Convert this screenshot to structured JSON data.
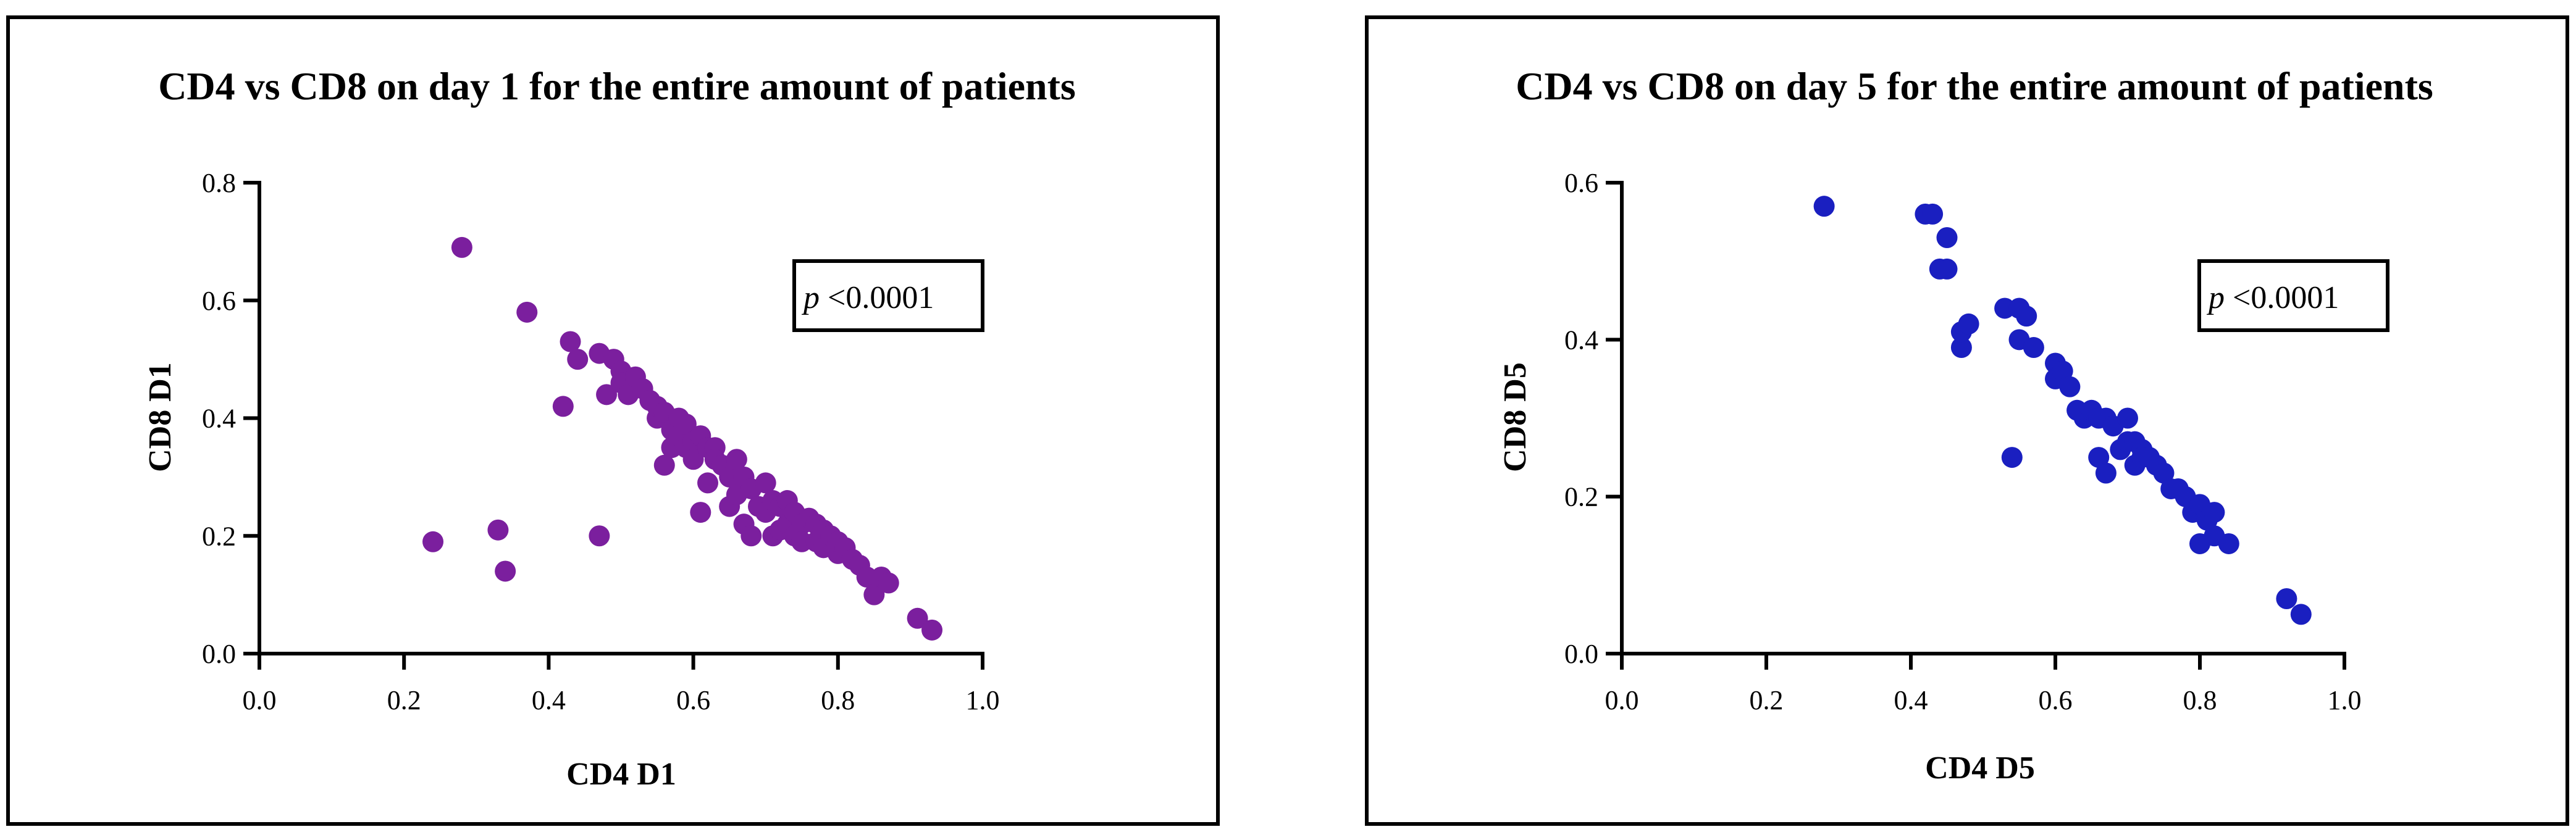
{
  "chart_data": [
    {
      "type": "scatter",
      "title": "CD4 vs CD8 on day 1 for the entire amount of patients",
      "xlabel": "CD4 D1",
      "ylabel": "CD8 D1",
      "xlim": [
        0.0,
        1.0
      ],
      "ylim": [
        0.0,
        0.8
      ],
      "xticks": [
        "0.0",
        "0.2",
        "0.4",
        "0.6",
        "0.8",
        "1.0"
      ],
      "yticks": [
        "0.0",
        "0.2",
        "0.4",
        "0.6",
        "0.8"
      ],
      "color": "#7B1F9E",
      "annotation": {
        "italic": "p",
        "text": " <0.0001"
      },
      "series": [
        {
          "x": [
            0.24,
            0.28,
            0.33,
            0.34,
            0.37,
            0.42,
            0.43,
            0.44,
            0.47,
            0.47,
            0.48,
            0.49,
            0.5,
            0.5,
            0.51,
            0.52,
            0.53,
            0.54,
            0.55,
            0.55,
            0.56,
            0.56,
            0.57,
            0.57,
            0.58,
            0.58,
            0.59,
            0.59,
            0.6,
            0.6,
            0.61,
            0.61,
            0.62,
            0.62,
            0.63,
            0.63,
            0.64,
            0.65,
            0.65,
            0.66,
            0.66,
            0.67,
            0.67,
            0.68,
            0.68,
            0.69,
            0.7,
            0.7,
            0.71,
            0.71,
            0.72,
            0.72,
            0.73,
            0.73,
            0.74,
            0.74,
            0.75,
            0.75,
            0.76,
            0.77,
            0.77,
            0.78,
            0.78,
            0.79,
            0.8,
            0.8,
            0.81,
            0.82,
            0.83,
            0.84,
            0.85,
            0.86,
            0.87,
            0.91,
            0.93
          ],
          "y": [
            0.19,
            0.69,
            0.21,
            0.14,
            0.58,
            0.42,
            0.53,
            0.5,
            0.2,
            0.51,
            0.44,
            0.5,
            0.48,
            0.46,
            0.44,
            0.47,
            0.45,
            0.43,
            0.4,
            0.42,
            0.41,
            0.32,
            0.38,
            0.35,
            0.4,
            0.37,
            0.39,
            0.35,
            0.36,
            0.33,
            0.37,
            0.24,
            0.35,
            0.29,
            0.35,
            0.33,
            0.32,
            0.3,
            0.25,
            0.33,
            0.27,
            0.3,
            0.22,
            0.28,
            0.2,
            0.25,
            0.29,
            0.24,
            0.26,
            0.2,
            0.25,
            0.21,
            0.26,
            0.22,
            0.24,
            0.2,
            0.22,
            0.19,
            0.23,
            0.22,
            0.19,
            0.21,
            0.18,
            0.2,
            0.17,
            0.19,
            0.18,
            0.16,
            0.15,
            0.13,
            0.1,
            0.13,
            0.12,
            0.06,
            0.04
          ]
        }
      ]
    },
    {
      "type": "scatter",
      "title": "CD4 vs CD8 on day 5 for the entire amount of patients",
      "xlabel": "CD4 D5",
      "ylabel": "CD8 D5",
      "xlim": [
        0.0,
        1.0
      ],
      "ylim": [
        0.0,
        0.6
      ],
      "xticks": [
        "0.0",
        "0.2",
        "0.4",
        "0.6",
        "0.8",
        "1.0"
      ],
      "yticks": [
        "0.0",
        "0.2",
        "0.4",
        "0.6"
      ],
      "color": "#1A1FC0",
      "annotation": {
        "italic": "p",
        "text": " <0.0001"
      },
      "series": [
        {
          "x": [
            0.28,
            0.42,
            0.43,
            0.44,
            0.45,
            0.45,
            0.47,
            0.47,
            0.48,
            0.53,
            0.54,
            0.55,
            0.55,
            0.56,
            0.57,
            0.6,
            0.6,
            0.61,
            0.62,
            0.63,
            0.64,
            0.65,
            0.66,
            0.66,
            0.67,
            0.67,
            0.68,
            0.69,
            0.7,
            0.7,
            0.71,
            0.71,
            0.72,
            0.72,
            0.73,
            0.74,
            0.75,
            0.76,
            0.77,
            0.78,
            0.79,
            0.8,
            0.8,
            0.81,
            0.82,
            0.82,
            0.84,
            0.92,
            0.94
          ],
          "y": [
            0.57,
            0.56,
            0.56,
            0.49,
            0.53,
            0.49,
            0.39,
            0.41,
            0.42,
            0.44,
            0.25,
            0.44,
            0.4,
            0.43,
            0.39,
            0.37,
            0.35,
            0.36,
            0.34,
            0.31,
            0.3,
            0.31,
            0.3,
            0.25,
            0.3,
            0.23,
            0.29,
            0.26,
            0.3,
            0.27,
            0.27,
            0.24,
            0.26,
            0.25,
            0.25,
            0.24,
            0.23,
            0.21,
            0.21,
            0.2,
            0.18,
            0.19,
            0.14,
            0.17,
            0.18,
            0.15,
            0.14,
            0.07,
            0.05
          ]
        }
      ]
    }
  ]
}
